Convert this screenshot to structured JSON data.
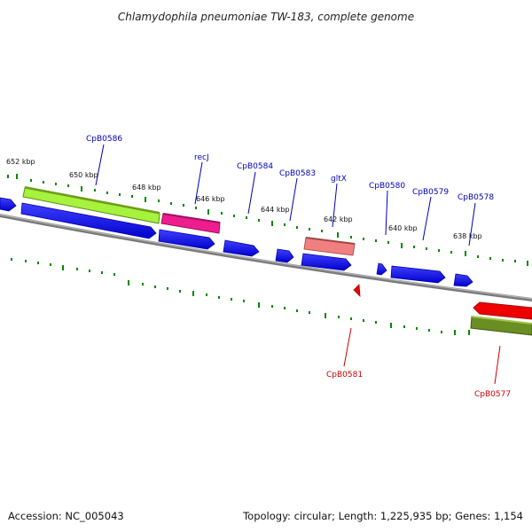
{
  "title": "Chlamydophila pneumoniae TW-183, complete genome",
  "footer": {
    "accession": "Accession: NC_005043",
    "summary": "Topology: circular; Length: 1,225,935 bp; Genes: 1,154"
  },
  "ticks": [
    "652 kbp",
    "650 kbp",
    "648 kbp",
    "646 kbp",
    "644 kbp",
    "642 kbp",
    "640 kbp",
    "638 kbp"
  ],
  "gene_labels_forward": [
    "CpB0586",
    "recJ",
    "CpB0584",
    "CpB0583",
    "gltX",
    "CpB0580",
    "CpB0579",
    "CpB0578"
  ],
  "gene_labels_reverse": [
    "CpB0581",
    "CpB0577"
  ],
  "colors": {
    "backbone": "#808080",
    "cds_blue": "#0000ee",
    "gene_green": "#a6f23c",
    "gene_magenta": "#ee1d8e",
    "gene_salmon": "#f08080",
    "gene_red": "#ee0000",
    "gene_olive": "#6b8e23",
    "tick_green": "#008800",
    "label_blue": "#0000bb",
    "label_red": "#cc0000"
  }
}
